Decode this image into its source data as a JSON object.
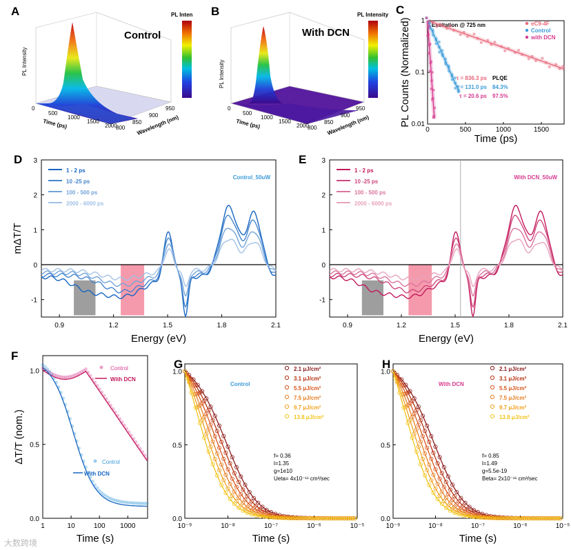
{
  "watermark": "大数跨境",
  "panels": {
    "A": {
      "letter": "A",
      "label": "Control",
      "cbar": "PL Inten",
      "zlabel": "PL Intensity",
      "xlabel": "Time (ps)",
      "ylabel": "Wavelength (nm)",
      "ticks": [
        "0",
        "500",
        "1000",
        "1500",
        "2000",
        "800",
        "850",
        "900",
        "950"
      ]
    },
    "B": {
      "letter": "B",
      "label": "With DCN",
      "cbar": "PL Intensity",
      "zlabel": "PL Intensity",
      "xlabel": "Time (ps)",
      "ylabel": "Wavelength (nm)",
      "ticks": [
        "0",
        "500",
        "1000",
        "1500",
        "2000",
        "800",
        "850",
        "900",
        "950"
      ]
    }
  },
  "colors": {
    "control": "#3a9ad9",
    "control_dark": "#1565c0",
    "dcn": "#d63a8f",
    "ec9": "#e8677a",
    "gray_band": "#9e9e9e",
    "pink_band": "#f48fa3"
  },
  "chart_data": [
    {
      "id": "C",
      "type": "scatter",
      "letter": "C",
      "title": "Excitation @ 725 nm",
      "xlabel": "Time (ps)",
      "ylabel": "PL Counts (Normalized)",
      "xlim": [
        0,
        1800
      ],
      "ylim_log": [
        0.01,
        1
      ],
      "xticks": [
        "0",
        "500",
        "1000",
        "1500"
      ],
      "yticks": [
        "0.01",
        "0.1",
        "1"
      ],
      "series": [
        {
          "name": "eC9-4F",
          "tau": "τ = 836.3 ps",
          "plqe": ""
        },
        {
          "name": "Control",
          "tau": "τ = 131.0 ps",
          "plqe": "84.3%"
        },
        {
          "name": "with DCN",
          "tau": "τ = 20.6 ps",
          "plqe": "97.5%"
        }
      ],
      "plqe_header": "PLQE"
    },
    {
      "id": "D",
      "type": "line",
      "letter": "D",
      "title": "Control_50uW",
      "xlabel": "Energy (eV)",
      "ylabel": "mΔT/T",
      "xlim": [
        0.8,
        2.1
      ],
      "ylim": [
        -1.5,
        3
      ],
      "xticks": [
        "0.9",
        "1.2",
        "1.5",
        "1.8",
        "2.1"
      ],
      "yticks": [
        "-1",
        "0",
        "1",
        "2",
        "3"
      ],
      "legend": [
        "1 - 2 ps",
        "10 -25 ps",
        "100 - 500 ps",
        "2000 - 6000 ps"
      ]
    },
    {
      "id": "E",
      "type": "line",
      "letter": "E",
      "title": "With DCN_50uW",
      "xlabel": "Energy (eV)",
      "ylabel": "",
      "xlim": [
        0.8,
        2.1
      ],
      "ylim": [
        -1.5,
        3
      ],
      "xticks": [
        "0.9",
        "1.2",
        "1.5",
        "1.8",
        "2.1"
      ],
      "yticks": [
        "-1",
        "0",
        "1",
        "2",
        "3"
      ],
      "legend": [
        "1 - 2 ps",
        "10 -25 ps",
        "100 - 500 ps",
        "2000 - 6000 ps"
      ]
    },
    {
      "id": "F",
      "type": "line",
      "letter": "F",
      "xlabel": "Time (s)",
      "ylabel": "ΔT/T (nom.)",
      "xlim_log": [
        1,
        5000
      ],
      "ylim": [
        0,
        1.1
      ],
      "xticks": [
        "1",
        "10",
        "100",
        "1000"
      ],
      "yticks": [
        "0.0",
        "0.5",
        "1.0"
      ],
      "legend_top": [
        "Control",
        "With DCN"
      ],
      "legend_bottom": [
        "Control",
        "With DCN"
      ]
    },
    {
      "id": "G",
      "type": "scatter",
      "letter": "G",
      "title": "Control",
      "xlabel": "Time (s)",
      "ylabel": "",
      "xticks": [
        "10⁻⁹",
        "10⁻⁸",
        "10⁻⁷",
        "10⁻⁶",
        "10⁻⁵"
      ],
      "yticks": [
        "0.0",
        "0.5",
        "1.0"
      ],
      "legend": [
        "2.1  μJ/cm²",
        "3.1  μJ/cm²",
        "5.5  μJ/cm²",
        "7.5  μJ/cm²",
        "9.7  μJ/cm²",
        "13.8 μJ/cm²"
      ],
      "params": [
        "f= 0.36",
        "l=1.35",
        "g=1e10",
        "Ueta= 4x10⁻¹¹ cm³/sec"
      ]
    },
    {
      "id": "H",
      "type": "scatter",
      "letter": "H",
      "title": "With DCN",
      "xlabel": "Time (s)",
      "ylabel": "",
      "xticks": [
        "10⁻⁹",
        "10⁻⁸",
        "10⁻⁷",
        "10⁻⁶",
        "10⁻⁵"
      ],
      "yticks": [
        "0.0",
        "0.5",
        "1.0"
      ],
      "legend": [
        "2.1  μJ/cm²",
        "3.1  μJ/cm²",
        "5.5  μJ/cm²",
        "7.5  μJ/cm²",
        "9.7  μJ/cm²",
        "13.8 μJ/cm²"
      ],
      "params": [
        "f= 0.85",
        "l=1.49",
        "g=5.5e-19",
        "Beta= 2x10⁻¹¹ cm³/sec"
      ]
    }
  ]
}
